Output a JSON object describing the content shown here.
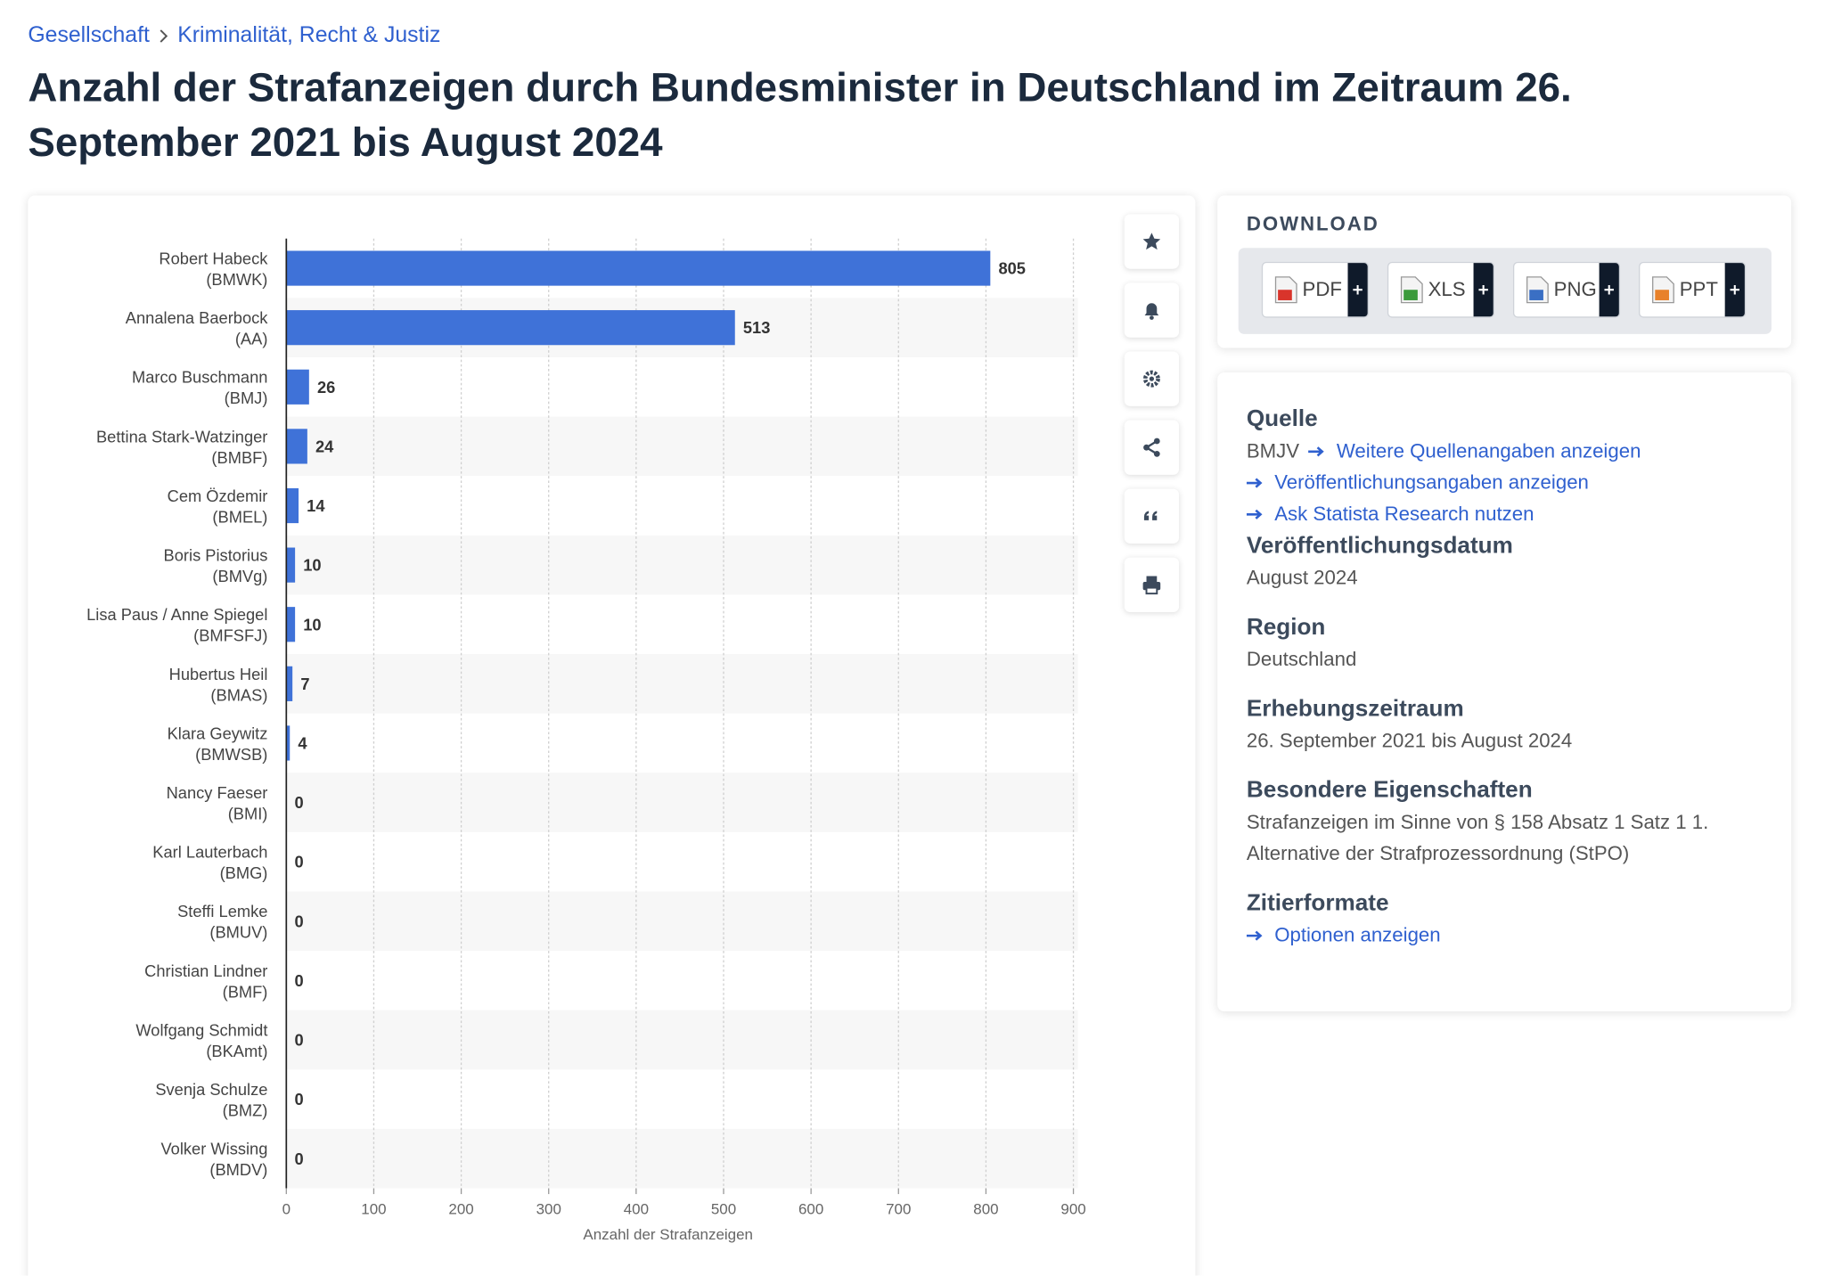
{
  "breadcrumb": [
    "Gesellschaft",
    "Kriminalität, Recht & Justiz"
  ],
  "title": "Anzahl der Strafanzeigen durch Bundesminister in Deutschland im Zeitraum 26. September 2021 bis August 2024",
  "chart_data": {
    "type": "bar",
    "categories": [
      "Robert Habeck\n(BMWK)",
      "Annalena Baerbock\n(AA)",
      "Marco Buschmann\n(BMJ)",
      "Bettina Stark-Watzinger\n(BMBF)",
      "Cem Özdemir\n(BMEL)",
      "Boris Pistorius\n(BMVg)",
      "Lisa Paus / Anne Spiegel\n(BMFSFJ)",
      "Hubertus Heil\n(BMAS)",
      "Klara Geywitz\n(BMWSB)",
      "Nancy Faeser\n(BMI)",
      "Karl Lauterbach\n(BMG)",
      "Steffi Lemke\n(BMUV)",
      "Christian Lindner\n(BMF)",
      "Wolfgang Schmidt\n(BKAmt)",
      "Svenja Schulze\n(BMZ)",
      "Volker Wissing\n(BMDV)"
    ],
    "values": [
      805,
      513,
      26,
      24,
      14,
      10,
      10,
      7,
      4,
      0,
      0,
      0,
      0,
      0,
      0,
      0
    ],
    "color": "#3f72d8",
    "xlim": [
      0,
      905
    ],
    "xticks": [
      0,
      100,
      200,
      300,
      400,
      500,
      600,
      700,
      800,
      900
    ],
    "x_label": "Anzahl der Strafanzeigen",
    "grid": true
  },
  "download": {
    "title": "DOWNLOAD",
    "buttons": [
      "PDF",
      "XLS",
      "PNG",
      "PPT"
    ]
  },
  "details": {
    "source": {
      "heading": "Quelle",
      "name": "BMJV",
      "links": [
        "Weitere Quellenangaben anzeigen",
        "Veröffentlichungsangaben anzeigen",
        "Ask Statista Research nutzen"
      ]
    },
    "sections": [
      {
        "heading": "Veröffentlichungsdatum",
        "text": "August 2024"
      },
      {
        "heading": "Region",
        "text": "Deutschland"
      },
      {
        "heading": "Erhebungszeitraum",
        "text": "26. September 2021 bis August 2024"
      },
      {
        "heading": "Besondere Eigenschaften",
        "text": "Strafanzeigen im Sinne von § 158 Absatz 1 Satz 1 1. Alternative der Strafprozessordnung (StPO)"
      }
    ],
    "citation": {
      "heading": "Zitierformate",
      "link": "Optionen anzeigen"
    }
  }
}
